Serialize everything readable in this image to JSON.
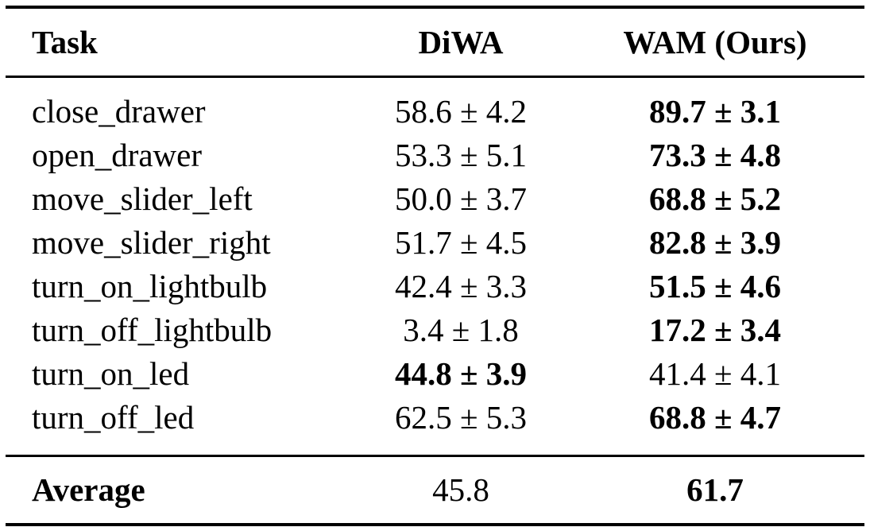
{
  "table": {
    "headers": {
      "task": "Task",
      "diwa": "DiWA",
      "wam": "WAM (Ours)"
    },
    "rows": [
      {
        "task": "close_drawer",
        "diwa": "58.6 ± 4.2",
        "wam": "89.7 ± 3.1",
        "best": "wam"
      },
      {
        "task": "open_drawer",
        "diwa": "53.3 ± 5.1",
        "wam": "73.3 ± 4.8",
        "best": "wam"
      },
      {
        "task": "move_slider_left",
        "diwa": "50.0 ± 3.7",
        "wam": "68.8 ± 5.2",
        "best": "wam"
      },
      {
        "task": "move_slider_right",
        "diwa": "51.7 ± 4.5",
        "wam": "82.8 ± 3.9",
        "best": "wam"
      },
      {
        "task": "turn_on_lightbulb",
        "diwa": "42.4 ± 3.3",
        "wam": "51.5 ± 4.6",
        "best": "wam"
      },
      {
        "task": "turn_off_lightbulb",
        "diwa": "3.4 ± 1.8",
        "wam": "17.2 ± 3.4",
        "best": "wam"
      },
      {
        "task": "turn_on_led",
        "diwa": "44.8 ± 3.9",
        "wam": "41.4 ± 4.1",
        "best": "diwa"
      },
      {
        "task": "turn_off_led",
        "diwa": "62.5 ± 5.3",
        "wam": "68.8 ± 4.7",
        "best": "wam"
      }
    ],
    "average": {
      "label": "Average",
      "diwa": "45.8",
      "wam": "61.7",
      "best": "wam"
    }
  }
}
